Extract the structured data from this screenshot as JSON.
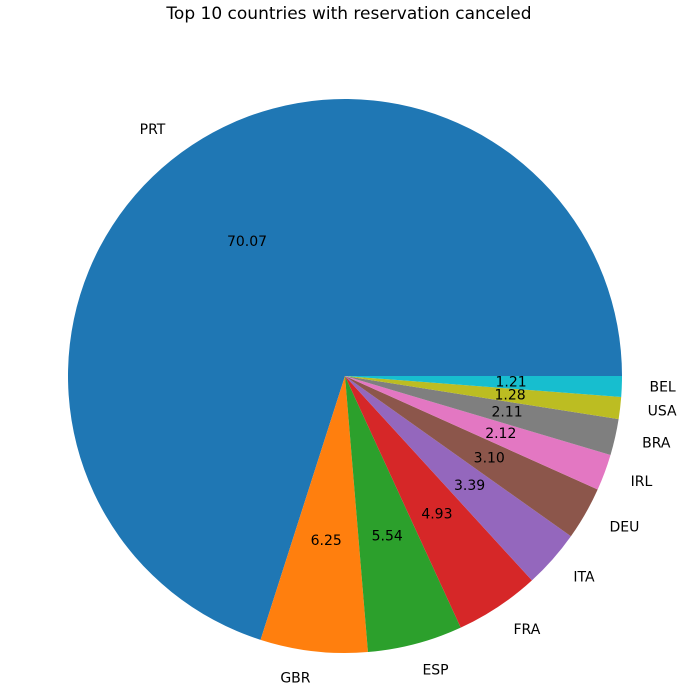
{
  "chart_data": {
    "type": "pie",
    "title": "Top 10 countries with reservation canceled",
    "categories": [
      "PRT",
      "GBR",
      "ESP",
      "FRA",
      "ITA",
      "DEU",
      "IRL",
      "BRA",
      "USA",
      "BEL"
    ],
    "values": [
      70.07,
      6.25,
      5.54,
      4.93,
      3.39,
      3.1,
      2.12,
      2.11,
      1.28,
      1.21
    ],
    "value_labels": [
      "70.07",
      "6.25",
      "5.54",
      "4.93",
      "3.39",
      "3.10",
      "2.12",
      "2.11",
      "1.28",
      "1.21"
    ],
    "colors": [
      "#1f77b4",
      "#ff7f0e",
      "#2ca02c",
      "#d62728",
      "#9467bd",
      "#8c564b",
      "#e377c2",
      "#7f7f7f",
      "#bcbd22",
      "#17becf"
    ],
    "start_angle_deg": 0,
    "direction": "counterclockwise",
    "legend": "none"
  }
}
